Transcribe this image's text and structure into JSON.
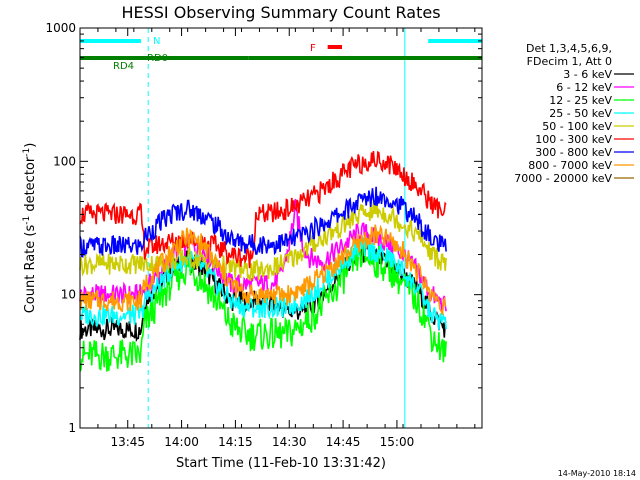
{
  "chart_data": {
    "type": "line",
    "title": "HESSI Observing Summary Count Rates",
    "xlabel": "Start Time (11-Feb-10 13:31:42)",
    "ylabel_main": "Count Rate (s",
    "ylabel_sup1": "-1",
    "ylabel_mid": " detector",
    "ylabel_sup2": "-1",
    "ylabel_end": ")",
    "y_scale": "log",
    "ylim": [
      1,
      1000
    ],
    "xlim": [
      0,
      112
    ],
    "x_ticks": [
      {
        "label": "13:45",
        "t": 13.3
      },
      {
        "label": "14:00",
        "t": 28.3
      },
      {
        "label": "14:15",
        "t": 43.3
      },
      {
        "label": "14:30",
        "t": 58.3
      },
      {
        "label": "14:45",
        "t": 73.3
      },
      {
        "label": "15:00",
        "t": 88.3
      }
    ],
    "y_ticks": [
      {
        "label": "1",
        "v": 1
      },
      {
        "label": "10",
        "v": 10
      },
      {
        "label": "100",
        "v": 100
      },
      {
        "label": "1000",
        "v": 1000
      }
    ],
    "legend_header": [
      "Det 1,3,4,5,6,9,",
      "FDecim 1, Att 0"
    ],
    "legend_position": "right",
    "series": [
      {
        "name": "3 - 6 keV",
        "color": "#000000",
        "x": [
          0,
          17,
          18,
          22,
          26,
          30,
          34,
          38,
          42,
          46,
          50,
          54,
          58,
          62,
          66,
          70,
          74,
          78,
          82,
          86,
          90,
          94,
          96,
          97,
          98,
          102
        ],
        "y": [
          5.5,
          5.5,
          9,
          12,
          16,
          18,
          16,
          12,
          9,
          9,
          9,
          8.5,
          7.5,
          7.5,
          9,
          12,
          16,
          21,
          19,
          17,
          14,
          11,
          9,
          8,
          7,
          5.5
        ]
      },
      {
        "name": "6 - 12 keV",
        "color": "#ff00ff",
        "x": [
          0,
          17,
          18,
          22,
          26,
          30,
          34,
          38,
          42,
          46,
          50,
          54,
          56,
          58,
          60,
          62,
          64,
          66,
          68,
          70,
          74,
          78,
          82,
          86,
          90,
          94,
          96,
          97,
          98,
          102
        ],
        "y": [
          10,
          10,
          11,
          14,
          20,
          24,
          22,
          16,
          12,
          12,
          12,
          12,
          14,
          22,
          44,
          24,
          19,
          18,
          18,
          20,
          24,
          30,
          27,
          24,
          20,
          15,
          12,
          11,
          10,
          8
        ]
      },
      {
        "name": "12 - 25 keV",
        "color": "#00ff00",
        "x": [
          0,
          17,
          18,
          22,
          26,
          30,
          34,
          38,
          42,
          46,
          50,
          54,
          58,
          62,
          66,
          70,
          74,
          78,
          82,
          86,
          90,
          94,
          96,
          97,
          98,
          102
        ],
        "y": [
          3.5,
          3.5,
          6,
          9,
          13,
          16,
          13,
          9,
          6,
          5,
          5,
          5,
          5,
          6,
          7.5,
          10,
          14,
          20,
          18,
          16,
          12,
          9,
          7,
          6,
          5,
          3.5
        ]
      },
      {
        "name": "25 - 50 keV",
        "color": "#00ffff",
        "x": [
          0,
          17,
          18,
          22,
          26,
          30,
          34,
          38,
          42,
          46,
          50,
          54,
          58,
          62,
          66,
          70,
          74,
          78,
          82,
          86,
          90,
          94,
          96,
          97,
          98,
          102
        ],
        "y": [
          7,
          7,
          9,
          12,
          16,
          19,
          16,
          12,
          9,
          8,
          8,
          8,
          8,
          9,
          11,
          14,
          18,
          23,
          21,
          19,
          15,
          11,
          9,
          8,
          7,
          6
        ]
      },
      {
        "name": "50 - 100 keV",
        "color": "#cccc00",
        "x": [
          0,
          17,
          18,
          22,
          26,
          30,
          34,
          38,
          42,
          46,
          50,
          54,
          58,
          62,
          66,
          70,
          74,
          78,
          82,
          86,
          90,
          94,
          96,
          97,
          98,
          102
        ],
        "y": [
          17,
          17,
          17,
          17,
          18,
          19,
          18,
          17,
          16,
          15,
          15,
          16,
          18,
          21,
          25,
          29,
          34,
          40,
          43,
          40,
          34,
          28,
          24,
          22,
          20,
          17
        ]
      },
      {
        "name": "100 - 300 keV",
        "color": "#ff0000",
        "x": [
          0,
          15,
          17,
          18,
          22,
          26,
          30,
          34,
          38,
          42,
          46,
          48,
          49,
          52,
          56,
          60,
          64,
          68,
          72,
          76,
          80,
          84,
          88,
          92,
          96,
          97,
          98,
          102
        ],
        "y": [
          40,
          40,
          40,
          22,
          24,
          25,
          26,
          25,
          23,
          20,
          19,
          19,
          40,
          40,
          42,
          46,
          52,
          62,
          76,
          90,
          102,
          102,
          90,
          72,
          56,
          52,
          48,
          40
        ]
      },
      {
        "name": "300 - 800 keV",
        "color": "#0000ff",
        "x": [
          0,
          17,
          18,
          22,
          26,
          30,
          34,
          38,
          42,
          46,
          50,
          54,
          58,
          62,
          66,
          70,
          74,
          78,
          82,
          86,
          90,
          94,
          96,
          97,
          98,
          102
        ],
        "y": [
          23,
          23,
          27,
          34,
          41,
          44,
          40,
          33,
          26,
          24,
          24,
          24,
          25,
          28,
          32,
          37,
          43,
          50,
          56,
          53,
          45,
          36,
          30,
          28,
          26,
          22
        ]
      },
      {
        "name": "800 - 7000 keV",
        "color": "#ff9900",
        "x": [
          0,
          17,
          18,
          22,
          26,
          30,
          34,
          38,
          42,
          46,
          50,
          54,
          58,
          62,
          66,
          70,
          74,
          78,
          82,
          86,
          90,
          94,
          96,
          97,
          98,
          102
        ],
        "y": [
          9,
          9,
          12,
          16,
          22,
          27,
          24,
          17,
          12,
          10,
          10,
          10,
          10,
          11,
          13,
          16,
          20,
          25,
          28,
          26,
          21,
          15,
          12,
          11,
          10,
          8
        ]
      },
      {
        "name": "7000 - 20000 keV",
        "color": "#996600",
        "x": [],
        "y": []
      }
    ],
    "attenuator_bars": [
      {
        "label": "N",
        "color": "#00ffff",
        "row": 1,
        "segments": [
          [
            0,
            17
          ],
          [
            97,
            112
          ]
        ]
      },
      {
        "label": "F",
        "color": "#ff0000",
        "row": 2,
        "segments": [
          [
            69,
            73
          ]
        ]
      },
      {
        "label": "RD0",
        "color": "#008000",
        "row": 3,
        "segments": [
          [
            0,
            47
          ],
          [
            47,
            112
          ]
        ]
      },
      {
        "label": "RD4",
        "color": "#008000",
        "row": 3,
        "segments": []
      }
    ],
    "vertical_lines": [
      {
        "t": 0,
        "color": "#00ffff",
        "style": "solid"
      },
      {
        "t": 19,
        "color": "#00ffff",
        "style": "dashed"
      },
      {
        "t": 90.5,
        "color": "#00ffff",
        "style": "solid"
      },
      {
        "t": 112,
        "color": "#00ffff",
        "style": "dashed"
      }
    ],
    "footer_date": "14-May-2010 18:14"
  }
}
